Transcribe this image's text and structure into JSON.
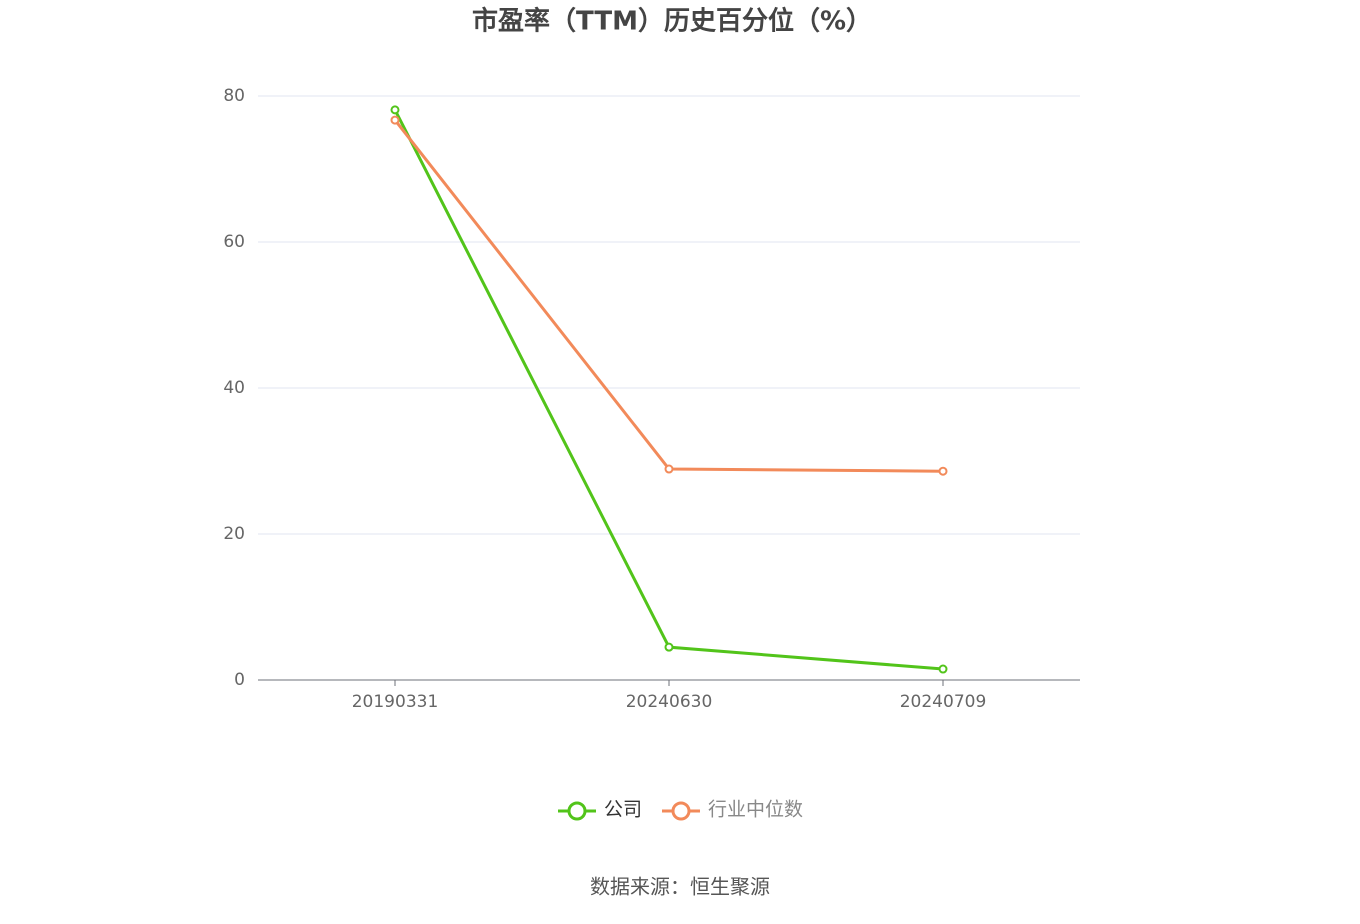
{
  "chart_data": {
    "type": "line",
    "title": "市盈率（TTM）历史百分位（%）",
    "categories": [
      "20190331",
      "20240630",
      "20240709"
    ],
    "series": [
      {
        "name": "公司",
        "color": "#52c41a",
        "values": [
          78.1,
          4.5,
          1.5
        ]
      },
      {
        "name": "行业中位数",
        "color": "#f28a5a",
        "values": [
          76.7,
          28.9,
          28.6
        ]
      }
    ],
    "ylim": [
      0,
      80
    ],
    "yticks": [
      0,
      20,
      40,
      60,
      80
    ],
    "grid": true,
    "source": "数据来源：恒生聚源"
  }
}
